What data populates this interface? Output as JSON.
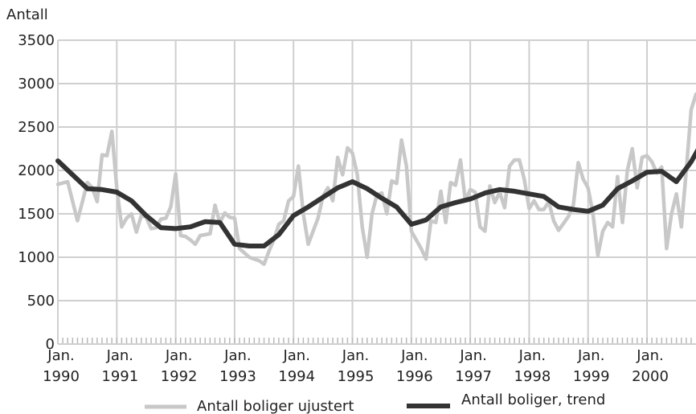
{
  "chart_data": {
    "type": "line",
    "ylabel": "Antall",
    "xlabel": "",
    "ylim": [
      0,
      3500
    ],
    "yticks": [
      0,
      500,
      1000,
      1500,
      2000,
      2500,
      3000,
      3500
    ],
    "xtick_labels": [
      {
        "month": "Jan.",
        "year": "1990"
      },
      {
        "month": "Jan.",
        "year": "1991"
      },
      {
        "month": "Jan.",
        "year": "1992"
      },
      {
        "month": "Jan.",
        "year": "1993"
      },
      {
        "month": "Jan.",
        "year": "1994"
      },
      {
        "month": "Jan.",
        "year": "1995"
      },
      {
        "month": "Jan.",
        "year": "1996"
      },
      {
        "month": "Jan.",
        "year": "1997"
      },
      {
        "month": "Jan.",
        "year": "1998"
      },
      {
        "month": "Jan.",
        "year": "1999"
      },
      {
        "month": "Jan.",
        "year": "2000"
      }
    ],
    "grid": true,
    "legend_position": "bottom",
    "series": [
      {
        "name": "Antall boliger ujustert",
        "color": "#c8c8c8",
        "points": [
          [
            "1990-01",
            1840
          ],
          [
            "1990-03",
            1870
          ],
          [
            "1990-05",
            1420
          ],
          [
            "1990-07",
            1860
          ],
          [
            "1990-08",
            1800
          ],
          [
            "1990-09",
            1640
          ],
          [
            "1990-10",
            2180
          ],
          [
            "1990-11",
            2170
          ],
          [
            "1990-12",
            2450
          ],
          [
            "1991-01",
            1800
          ],
          [
            "1991-02",
            1350
          ],
          [
            "1991-03",
            1450
          ],
          [
            "1991-04",
            1500
          ],
          [
            "1991-05",
            1290
          ],
          [
            "1991-06",
            1480
          ],
          [
            "1991-07",
            1460
          ],
          [
            "1991-08",
            1330
          ],
          [
            "1991-09",
            1340
          ],
          [
            "1991-10",
            1440
          ],
          [
            "1991-11",
            1450
          ],
          [
            "1991-12",
            1580
          ],
          [
            "1992-01",
            1960
          ],
          [
            "1992-02",
            1250
          ],
          [
            "1992-03",
            1240
          ],
          [
            "1992-04",
            1200
          ],
          [
            "1992-05",
            1150
          ],
          [
            "1992-06",
            1250
          ],
          [
            "1992-07",
            1260
          ],
          [
            "1992-08",
            1270
          ],
          [
            "1992-09",
            1600
          ],
          [
            "1992-10",
            1400
          ],
          [
            "1992-11",
            1510
          ],
          [
            "1992-12",
            1460
          ],
          [
            "1993-01",
            1450
          ],
          [
            "1993-02",
            1100
          ],
          [
            "1993-03",
            1050
          ],
          [
            "1993-04",
            1000
          ],
          [
            "1993-05",
            980
          ],
          [
            "1993-06",
            960
          ],
          [
            "1993-07",
            920
          ],
          [
            "1993-08",
            1070
          ],
          [
            "1993-09",
            1200
          ],
          [
            "1993-10",
            1380
          ],
          [
            "1993-11",
            1420
          ],
          [
            "1993-12",
            1650
          ],
          [
            "1994-01",
            1700
          ],
          [
            "1994-02",
            2050
          ],
          [
            "1994-03",
            1500
          ],
          [
            "1994-04",
            1150
          ],
          [
            "1994-05",
            1300
          ],
          [
            "1994-06",
            1450
          ],
          [
            "1994-07",
            1700
          ],
          [
            "1994-08",
            1800
          ],
          [
            "1994-09",
            1650
          ],
          [
            "1994-10",
            2150
          ],
          [
            "1994-11",
            1950
          ],
          [
            "1994-12",
            2260
          ],
          [
            "1995-01",
            2200
          ],
          [
            "1995-02",
            1950
          ],
          [
            "1995-03",
            1350
          ],
          [
            "1995-04",
            1000
          ],
          [
            "1995-05",
            1500
          ],
          [
            "1995-06",
            1720
          ],
          [
            "1995-07",
            1740
          ],
          [
            "1995-08",
            1500
          ],
          [
            "1995-09",
            1880
          ],
          [
            "1995-10",
            1850
          ],
          [
            "1995-11",
            2350
          ],
          [
            "1995-12",
            2050
          ],
          [
            "1996-01",
            1300
          ],
          [
            "1996-02",
            1200
          ],
          [
            "1996-03",
            1100
          ],
          [
            "1996-04",
            980
          ],
          [
            "1996-05",
            1420
          ],
          [
            "1996-06",
            1400
          ],
          [
            "1996-07",
            1760
          ],
          [
            "1996-08",
            1400
          ],
          [
            "1996-09",
            1860
          ],
          [
            "1996-10",
            1830
          ],
          [
            "1996-11",
            2120
          ],
          [
            "1996-12",
            1650
          ],
          [
            "1997-01",
            1780
          ],
          [
            "1997-02",
            1750
          ],
          [
            "1997-03",
            1350
          ],
          [
            "1997-04",
            1300
          ],
          [
            "1997-05",
            1820
          ],
          [
            "1997-06",
            1630
          ],
          [
            "1997-07",
            1750
          ],
          [
            "1997-08",
            1570
          ],
          [
            "1997-09",
            2050
          ],
          [
            "1997-10",
            2120
          ],
          [
            "1997-11",
            2120
          ],
          [
            "1997-12",
            1900
          ],
          [
            "1998-01",
            1560
          ],
          [
            "1998-02",
            1650
          ],
          [
            "1998-03",
            1550
          ],
          [
            "1998-04",
            1550
          ],
          [
            "1998-05",
            1640
          ],
          [
            "1998-06",
            1420
          ],
          [
            "1998-07",
            1310
          ],
          [
            "1998-08",
            1390
          ],
          [
            "1998-09",
            1470
          ],
          [
            "1998-10",
            1600
          ],
          [
            "1998-11",
            2090
          ],
          [
            "1998-12",
            1900
          ],
          [
            "1999-01",
            1800
          ],
          [
            "1999-02",
            1500
          ],
          [
            "1999-03",
            1020
          ],
          [
            "1999-04",
            1300
          ],
          [
            "1999-05",
            1400
          ],
          [
            "1999-06",
            1350
          ],
          [
            "1999-07",
            1930
          ],
          [
            "1999-08",
            1400
          ],
          [
            "1999-09",
            2000
          ],
          [
            "1999-10",
            2250
          ],
          [
            "1999-11",
            1800
          ],
          [
            "1999-12",
            2150
          ],
          [
            "2000-01",
            2170
          ],
          [
            "2000-02",
            2100
          ],
          [
            "2000-03",
            1970
          ],
          [
            "2000-04",
            2040
          ],
          [
            "2000-05",
            1100
          ],
          [
            "2000-06",
            1500
          ],
          [
            "2000-07",
            1730
          ],
          [
            "2000-08",
            1350
          ],
          [
            "2000-09",
            2000
          ],
          [
            "2000-10",
            2700
          ],
          [
            "2000-11",
            2880
          ],
          [
            "2000-12",
            2700
          ]
        ]
      },
      {
        "name": "Antall boliger, trend",
        "color": "#333333",
        "points": [
          [
            "1990-01",
            2110
          ],
          [
            "1990-04",
            1950
          ],
          [
            "1990-07",
            1790
          ],
          [
            "1990-10",
            1780
          ],
          [
            "1991-01",
            1750
          ],
          [
            "1991-04",
            1650
          ],
          [
            "1991-07",
            1480
          ],
          [
            "1991-10",
            1340
          ],
          [
            "1992-01",
            1330
          ],
          [
            "1992-04",
            1350
          ],
          [
            "1992-07",
            1410
          ],
          [
            "1992-10",
            1400
          ],
          [
            "1993-01",
            1150
          ],
          [
            "1993-04",
            1130
          ],
          [
            "1993-07",
            1130
          ],
          [
            "1993-10",
            1260
          ],
          [
            "1994-01",
            1480
          ],
          [
            "1994-04",
            1580
          ],
          [
            "1994-07",
            1690
          ],
          [
            "1994-10",
            1800
          ],
          [
            "1995-01",
            1870
          ],
          [
            "1995-04",
            1790
          ],
          [
            "1995-07",
            1680
          ],
          [
            "1995-10",
            1580
          ],
          [
            "1996-01",
            1380
          ],
          [
            "1996-04",
            1430
          ],
          [
            "1996-07",
            1580
          ],
          [
            "1996-10",
            1630
          ],
          [
            "1997-01",
            1670
          ],
          [
            "1997-04",
            1740
          ],
          [
            "1997-07",
            1780
          ],
          [
            "1997-10",
            1760
          ],
          [
            "1998-01",
            1730
          ],
          [
            "1998-04",
            1700
          ],
          [
            "1998-07",
            1580
          ],
          [
            "1998-10",
            1550
          ],
          [
            "1999-01",
            1530
          ],
          [
            "1999-04",
            1600
          ],
          [
            "1999-07",
            1790
          ],
          [
            "1999-10",
            1880
          ],
          [
            "2000-01",
            1980
          ],
          [
            "2000-04",
            1990
          ],
          [
            "2000-07",
            1870
          ],
          [
            "2000-10",
            2100
          ],
          [
            "2000-12",
            2300
          ]
        ]
      }
    ]
  }
}
